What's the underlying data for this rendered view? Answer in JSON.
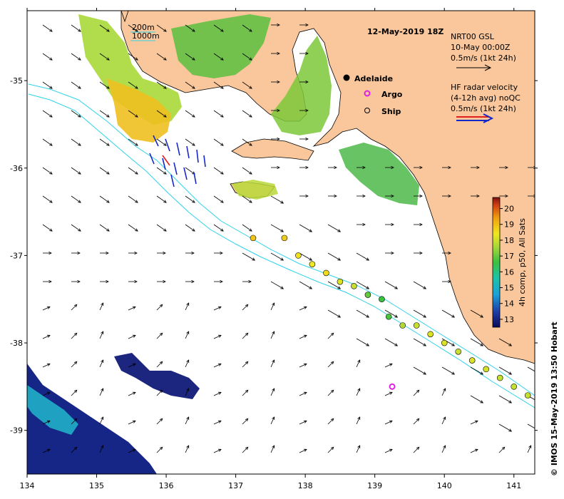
{
  "title": "12-May-2019 18Z",
  "credit": "© IMOS 15-May-2019 13:50 Hobart",
  "colors": {
    "land": "#f9c79b",
    "sea": "#ffffff",
    "isobath": "#2ed3e8",
    "arrow": "#000000",
    "hf_arrow": "#1428c8",
    "argo": "#e020e0"
  },
  "axes": {
    "x_ticks": [
      "134",
      "135",
      "136",
      "137",
      "138",
      "139",
      "140",
      "141"
    ],
    "y_ticks": [
      "-35",
      "-36",
      "-37",
      "-38",
      "-39"
    ],
    "lon_range": [
      134,
      141.3
    ],
    "lat_range": [
      -39.5,
      -34.2
    ]
  },
  "isobath_legend": {
    "line1": "200m",
    "line2": "1000m"
  },
  "legend": {
    "adelaide": "Adelaide",
    "argo": "Argo",
    "ship": "Ship",
    "gsl_line1": "NRT00 GSL",
    "gsl_line2": "10-May 00:00Z",
    "gsl_line3": "0.5m/s (1kt 24h)",
    "hf_line1": "HF radar velocity",
    "hf_line2": "(4-12h avg) noQC",
    "hf_line3": "0.5m/s (1kt 24h)"
  },
  "colorbar": {
    "label": "4h comp, p50, All Sats",
    "ticks": [
      "13",
      "14",
      "15",
      "16",
      "17",
      "18",
      "19",
      "20"
    ],
    "range": [
      12.5,
      20.7
    ]
  },
  "ship_track": {
    "note": "",
    "points": [
      {
        "lon": 137.25,
        "lat": -36.8,
        "sst": 18.5
      },
      {
        "lon": 137.7,
        "lat": -36.8,
        "sst": 18.4
      },
      {
        "lon": 137.9,
        "lat": -37.0,
        "sst": 18.1
      },
      {
        "lon": 138.1,
        "lat": -37.1,
        "sst": 18.0
      },
      {
        "lon": 138.3,
        "lat": -37.2,
        "sst": 18.2
      },
      {
        "lon": 138.5,
        "lat": -37.3,
        "sst": 17.8
      },
      {
        "lon": 138.7,
        "lat": -37.35,
        "sst": 17.6
      },
      {
        "lon": 138.9,
        "lat": -37.45,
        "sst": 16.8
      },
      {
        "lon": 139.1,
        "lat": -37.5,
        "sst": 16.5
      },
      {
        "lon": 139.2,
        "lat": -37.7,
        "sst": 16.6
      },
      {
        "lon": 139.4,
        "lat": -37.8,
        "sst": 17.4
      },
      {
        "lon": 139.6,
        "lat": -37.8,
        "sst": 17.6
      },
      {
        "lon": 139.8,
        "lat": -37.9,
        "sst": 17.8
      },
      {
        "lon": 140.0,
        "lat": -38.0,
        "sst": 17.8
      },
      {
        "lon": 140.2,
        "lat": -38.1,
        "sst": 17.6
      },
      {
        "lon": 140.4,
        "lat": -38.2,
        "sst": 17.8
      },
      {
        "lon": 140.6,
        "lat": -38.3,
        "sst": 17.7
      },
      {
        "lon": 140.8,
        "lat": -38.4,
        "sst": 17.6
      },
      {
        "lon": 141.0,
        "lat": -38.5,
        "sst": 17.6
      },
      {
        "lon": 141.2,
        "lat": -38.6,
        "sst": 17.6
      }
    ]
  },
  "argo_float": {
    "lon": 139.25,
    "lat": -38.5
  },
  "adelaide": {
    "lon": 138.6,
    "lat": -34.93
  }
}
